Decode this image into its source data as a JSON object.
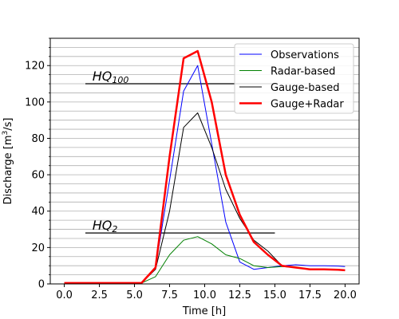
{
  "chart_data": {
    "type": "line",
    "xlabel": "Time [h]",
    "ylabel_main": "Discharge [m",
    "ylabel_sup": "3",
    "ylabel_end": "/s]",
    "xlim": [
      -1.0,
      21.0
    ],
    "ylim": [
      0,
      135
    ],
    "grid": "horizontal minor lines every 5",
    "legend_position": "top-right",
    "x_ticks": [
      0.0,
      2.5,
      5.0,
      7.5,
      10.0,
      12.5,
      15.0,
      17.5,
      20.0
    ],
    "x_tick_labels": [
      "0.0",
      "2.5",
      "5.0",
      "7.5",
      "10.0",
      "12.5",
      "15.0",
      "17.5",
      "20.0"
    ],
    "y_ticks": [
      0,
      20,
      40,
      60,
      80,
      100,
      120
    ],
    "y_tick_labels": [
      "0",
      "20",
      "40",
      "60",
      "80",
      "100",
      "120"
    ],
    "series": [
      {
        "name": "Observations",
        "color": "#0000ff",
        "width": 1,
        "x": [
          0,
          1,
          2,
          3,
          4,
          5,
          5.5,
          6.5,
          7.5,
          8.5,
          9.5,
          10.5,
          11.5,
          12.5,
          13.5,
          14.5,
          15.5,
          16.5,
          17.5,
          18.5,
          19.5,
          20
        ],
        "y": [
          0.5,
          0.5,
          0.5,
          0.5,
          0.5,
          0.5,
          0.5,
          9,
          57,
          106,
          120,
          77,
          34,
          12,
          8,
          9,
          10,
          10.5,
          10,
          10,
          9.8,
          9.5
        ]
      },
      {
        "name": "Radar-based",
        "color": "#008000",
        "width": 1,
        "x": [
          0,
          1,
          2,
          3,
          4,
          5,
          5.5,
          6.5,
          7.5,
          8.5,
          9.5,
          10.5,
          11.5,
          12.5,
          13.5,
          14.5,
          15.5,
          16.5,
          17.5,
          18.5,
          19.5,
          20
        ],
        "y": [
          0.5,
          0.5,
          0.5,
          0.5,
          0.5,
          0.5,
          0.5,
          4,
          16,
          24,
          26,
          22,
          16,
          14,
          10,
          9,
          9.5,
          9,
          8,
          8,
          7.8,
          7.5
        ]
      },
      {
        "name": "Gauge-based",
        "color": "#000000",
        "width": 1,
        "x": [
          0,
          1,
          2,
          3,
          4,
          5,
          5.5,
          6.5,
          7.5,
          8.5,
          9.5,
          10.5,
          11.5,
          12.5,
          13.5,
          14.5,
          15.5,
          16.5,
          17.5,
          18.5,
          19.5,
          20
        ],
        "y": [
          0.5,
          0.5,
          0.5,
          0.5,
          0.5,
          0.5,
          0.5,
          8,
          40,
          86,
          94,
          75,
          52,
          36,
          24,
          18,
          10,
          9,
          8,
          8,
          7.8,
          7.5
        ]
      },
      {
        "name": "Gauge+Radar",
        "color": "#ff0000",
        "width": 2.5,
        "x": [
          0,
          1,
          2,
          3,
          4,
          5,
          5.5,
          6.5,
          7.5,
          8.5,
          9.5,
          10.5,
          11.5,
          12.5,
          13.5,
          14.5,
          15.5,
          16.5,
          17.5,
          18.5,
          19.5,
          20
        ],
        "y": [
          0.5,
          0.5,
          0.5,
          0.5,
          0.5,
          0.5,
          0.5,
          9,
          70,
          124,
          128,
          100,
          60,
          38,
          23,
          16,
          10,
          9,
          8,
          8,
          7.8,
          7.5
        ]
      }
    ],
    "annotations": [
      {
        "main": "HQ",
        "sub": "100",
        "y": 110,
        "x_start": 1.5,
        "x_end": 15.0,
        "text_x": 2.0
      },
      {
        "main": "HQ",
        "sub": "2",
        "y": 28,
        "x_start": 1.5,
        "x_end": 15.0,
        "text_x": 2.0
      }
    ]
  }
}
